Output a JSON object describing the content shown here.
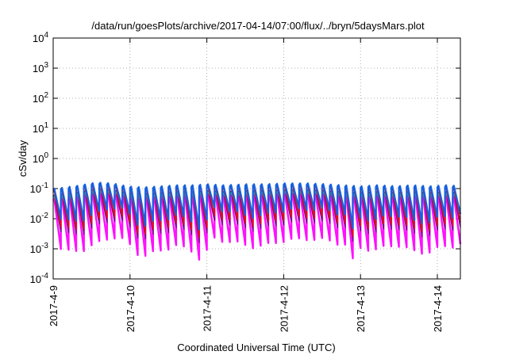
{
  "chart_data": {
    "type": "line",
    "title": "/data/run/goesPlots/archive/2017-04-14/07:00/flux/../bryn/5daysMars.plot",
    "xlabel": "Coordinated Universal Time (UTC)",
    "ylabel": "cSv/day",
    "yscale": "log",
    "ylim": [
      0.0001,
      10000
    ],
    "xlim": [
      "2017-04-09 00:00",
      "2017-04-14 07:00"
    ],
    "y_tick_labels": [
      {
        "base": "10",
        "exp": "-4"
      },
      {
        "base": "10",
        "exp": "-3"
      },
      {
        "base": "10",
        "exp": "-2"
      },
      {
        "base": "10",
        "exp": "-1"
      },
      {
        "base": "10",
        "exp": "0"
      },
      {
        "base": "10",
        "exp": "1"
      },
      {
        "base": "10",
        "exp": "2"
      },
      {
        "base": "10",
        "exp": "3"
      },
      {
        "base": "10",
        "exp": "4"
      }
    ],
    "x_tick_labels": [
      "2017-4-9",
      "2017-4-10",
      "2017-4-11",
      "2017-4-12",
      "2017-4-13",
      "2017-4-14"
    ],
    "grid": true,
    "legend": "none",
    "cycle_hours": 2.4,
    "drop_hours": 0.35,
    "gaps_days": [
      1.85,
      3.8
    ],
    "day_envelope": [
      {
        "day": 0.0,
        "peak": 0.1,
        "trough": 0.012
      },
      {
        "day": 0.15,
        "peak": 0.11,
        "trough": 0.006
      },
      {
        "day": 0.35,
        "peak": 0.13,
        "trough": 0.008
      },
      {
        "day": 0.55,
        "peak": 0.16,
        "trough": 0.012
      },
      {
        "day": 0.75,
        "peak": 0.15,
        "trough": 0.02
      },
      {
        "day": 0.95,
        "peak": 0.12,
        "trough": 0.015
      },
      {
        "day": 1.15,
        "peak": 0.11,
        "trough": 0.005
      },
      {
        "day": 1.4,
        "peak": 0.12,
        "trough": 0.007
      },
      {
        "day": 1.6,
        "peak": 0.13,
        "trough": 0.01
      },
      {
        "day": 1.8,
        "peak": 0.13,
        "trough": 0.008
      },
      {
        "day": 2.0,
        "peak": 0.14,
        "trough": 0.02
      },
      {
        "day": 2.2,
        "peak": 0.13,
        "trough": 0.015
      },
      {
        "day": 2.5,
        "peak": 0.14,
        "trough": 0.012
      },
      {
        "day": 2.75,
        "peak": 0.14,
        "trough": 0.01
      },
      {
        "day": 3.0,
        "peak": 0.15,
        "trough": 0.015
      },
      {
        "day": 3.3,
        "peak": 0.15,
        "trough": 0.02
      },
      {
        "day": 3.55,
        "peak": 0.14,
        "trough": 0.015
      },
      {
        "day": 3.75,
        "peak": 0.13,
        "trough": 0.012
      },
      {
        "day": 4.0,
        "peak": 0.12,
        "trough": 0.01
      },
      {
        "day": 4.2,
        "peak": 0.13,
        "trough": 0.007
      },
      {
        "day": 4.45,
        "peak": 0.12,
        "trough": 0.012
      },
      {
        "day": 4.65,
        "peak": 0.13,
        "trough": 0.008
      },
      {
        "day": 4.9,
        "peak": 0.12,
        "trough": 0.006
      },
      {
        "day": 5.1,
        "peak": 0.13,
        "trough": 0.01
      },
      {
        "day": 5.3,
        "peak": 0.12,
        "trough": 0.012
      }
    ],
    "series": [
      {
        "color": "#1560e0",
        "peak_factor": 1.0,
        "trough_factor": 1.2
      },
      {
        "color": "#e01010",
        "peak_factor": 0.85,
        "trough_factor": 0.65
      },
      {
        "color": "#10b0b0",
        "peak_factor": 0.55,
        "trough_factor": 1.6
      },
      {
        "color": "#7a1090",
        "peak_factor": 0.6,
        "trough_factor": 0.45
      },
      {
        "color": "#ff10ff",
        "peak_factor": 0.45,
        "trough_factor": 0.12
      }
    ]
  }
}
